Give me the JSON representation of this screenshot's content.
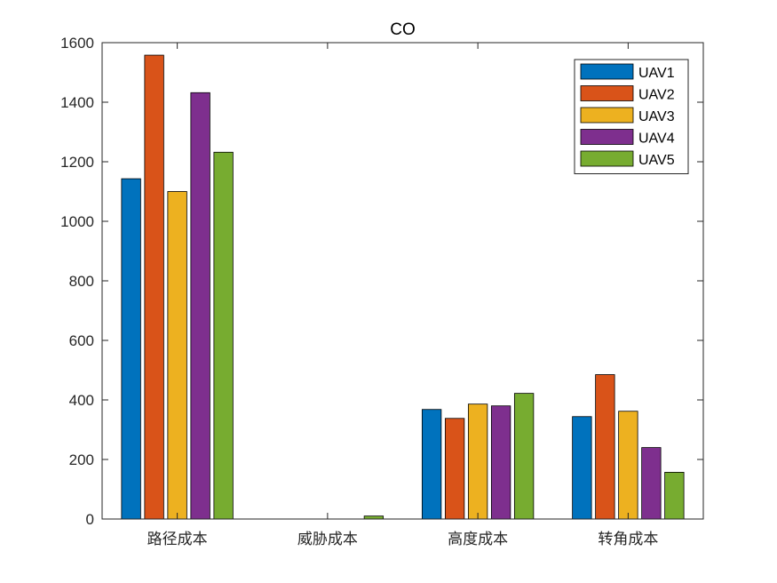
{
  "chart_data": {
    "type": "bar",
    "title": "CO",
    "xlabel": "",
    "ylabel": "",
    "categories": [
      "路径成本",
      "威胁成本",
      "高度成本",
      "转角成本"
    ],
    "ylim": [
      0,
      1600
    ],
    "yticks": [
      0,
      200,
      400,
      600,
      800,
      1000,
      1200,
      1400,
      1600
    ],
    "grid": false,
    "legend_position": "top-right",
    "series": [
      {
        "name": "UAV1",
        "color": "#0072BD",
        "values": [
          1143,
          0,
          368,
          344
        ]
      },
      {
        "name": "UAV2",
        "color": "#D95319",
        "values": [
          1558,
          0,
          338,
          485
        ]
      },
      {
        "name": "UAV3",
        "color": "#EDB120",
        "values": [
          1100,
          0,
          386,
          362
        ]
      },
      {
        "name": "UAV4",
        "color": "#7E2F8E",
        "values": [
          1432,
          0,
          380,
          240
        ]
      },
      {
        "name": "UAV5",
        "color": "#77AC30",
        "values": [
          1232,
          10,
          422,
          157
        ]
      }
    ]
  }
}
